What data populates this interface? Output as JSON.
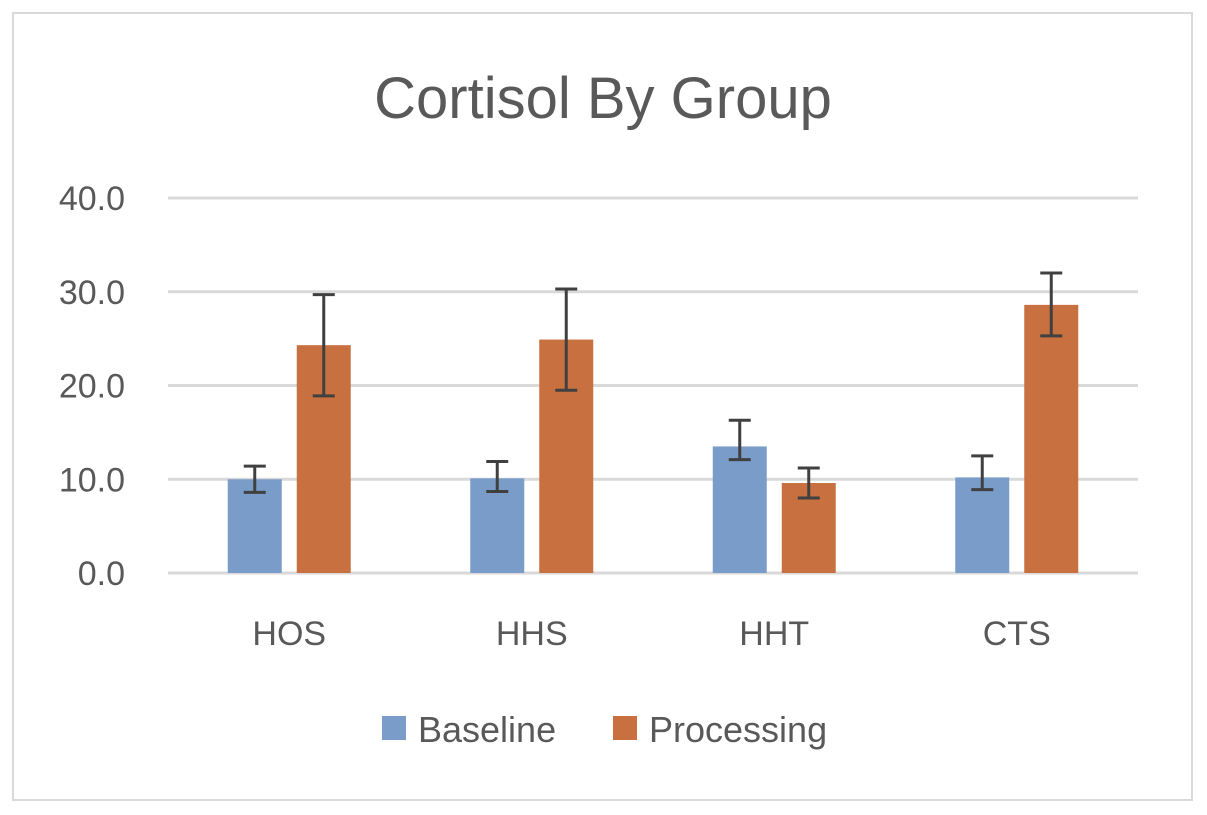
{
  "chart_data": {
    "type": "bar",
    "title": "Cortisol By Group",
    "xlabel": "",
    "ylabel": "",
    "categories": [
      "HOS",
      "HHS",
      "HHT",
      "CTS"
    ],
    "ylim": [
      0,
      40
    ],
    "yticks": [
      0,
      10,
      20,
      30,
      40
    ],
    "ytick_labels": [
      "0.0",
      "10.0",
      "20.0",
      "30.0",
      "40.0"
    ],
    "grid": true,
    "legend_position": "bottom",
    "series": [
      {
        "name": "Baseline",
        "color": "#7a9cc8",
        "values": [
          10.0,
          10.1,
          13.5,
          10.2
        ],
        "err_low": [
          8.6,
          8.7,
          12.1,
          8.9
        ],
        "err_high": [
          11.4,
          11.9,
          16.3,
          12.5
        ]
      },
      {
        "name": "Processing",
        "color": "#c8703f",
        "values": [
          24.3,
          24.9,
          9.6,
          28.6
        ],
        "err_low": [
          18.9,
          19.5,
          8.0,
          25.3
        ],
        "err_high": [
          29.7,
          30.3,
          11.2,
          32.0
        ]
      }
    ],
    "error_bar_color": "#404040",
    "gridline_color": "#d9d9d9"
  }
}
